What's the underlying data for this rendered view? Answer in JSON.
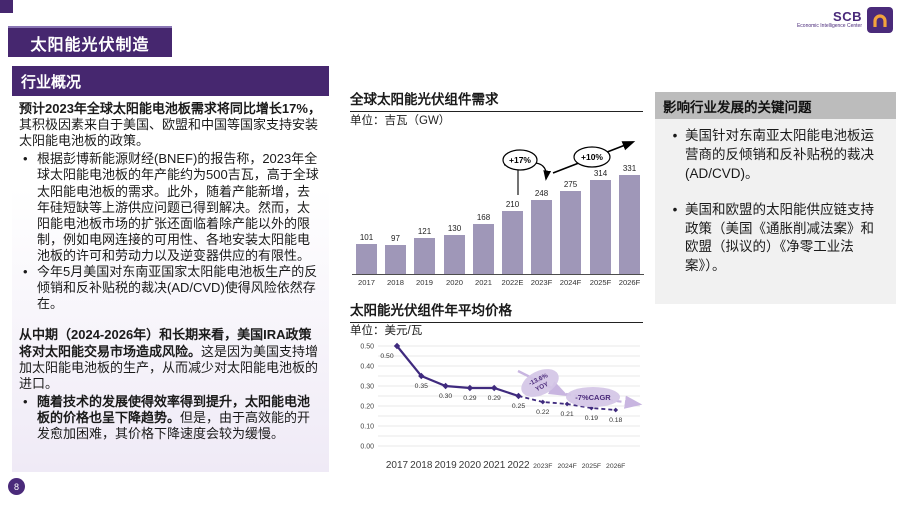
{
  "header": {
    "title": "太阳能光伏制造",
    "logo_brand": "SCB",
    "logo_subtitle": "Economic Intelligence Center",
    "page_number": "8"
  },
  "left_panel": {
    "title": "行业概况",
    "para1_bold": "预计2023年全球太阳能电池板需求将同比增长17%，",
    "para1_rest": "其积极因素来自于美国、欧盟和中国等国家支持安装太阳能电池板的政策。",
    "bullet_marker": "•",
    "bullet1": "根据彭博新能源财经(BNEF)的报告称，2023年全球太阳能电池板的年产能约为500吉瓦，高于全球太阳能电池板的需求。此外，随着产能新增，去年硅短缺等上游供应问题已得到解决。然而，太阳能电池板市场的扩张还面临着除产能以外的限制，例如电网连接的可用性、各地安装太阳能电池板的许可和劳动力以及逆变器供应的有限性。",
    "bullet2": "今年5月美国对东南亚国家太阳能电池板生产的反倾销和反补贴税的裁决(AD/CVD)使得风险依然存在。",
    "para2_bold": "从中期（2024-2026年）和长期来看，美国IRA政策将对太阳能交易市场造成风险。",
    "para2_rest": "这是因为美国支持增加太阳能电池板的生产，从而减少对太阳能电池板的进口。",
    "bullet3_bold": "随着技术的发展使得效率得到提升，太阳能电池板的价格也呈下降趋势。",
    "bullet3_rest": "但是，由于高效能的开发愈加困难，其价格下降速度会较为缓慢。"
  },
  "right_panel": {
    "title": "影响行业发展的关键问题",
    "bullet_marker": "•",
    "bullets": [
      "美国针对东南亚太阳能电池板运营商的反倾销和反补贴税的裁决(AD/CVD)。",
      "美国和欧盟的太阳能供应链支持政策（美国《通胀削减法案》和欧盟（拟议的）《净零工业法案》）。"
    ]
  },
  "chart_data": [
    {
      "type": "bar",
      "title": "全球太阳能光伏组件需求",
      "unit": "单位：吉瓦（GW）",
      "categories": [
        "2017",
        "2018",
        "2019",
        "2020",
        "2021",
        "2022E",
        "2023F",
        "2024F",
        "2025F",
        "2026F"
      ],
      "values": [
        101,
        97,
        121,
        130,
        168,
        210,
        248,
        275,
        314,
        331
      ],
      "growth_2023_label": "+17%",
      "growth_forecast_label": "+10%",
      "bar_color": "#9f97b8",
      "ylim": [
        0,
        350
      ],
      "grid": false,
      "legend": "none"
    },
    {
      "type": "line",
      "title": "太阳能光伏组件年平均价格",
      "unit": "单位：美元/瓦",
      "x": [
        "2017",
        "2018",
        "2019",
        "2020",
        "2021",
        "2022",
        "2023F",
        "2024F",
        "2025F",
        "2026F"
      ],
      "values": [
        0.5,
        0.35,
        0.3,
        0.29,
        0.29,
        0.25,
        0.22,
        0.21,
        0.19,
        0.18
      ],
      "solid_points": 6,
      "yoy_label": "-13.6% YOY",
      "cagr_label": "-7%CAGR",
      "line_color": "#3f2a7e",
      "annotation_fill": "#d4c5e6",
      "annotation_text_color": "#4a2a7a",
      "ylim": [
        0,
        0.5
      ],
      "yticks": [
        0.0,
        0.1,
        0.2,
        0.3,
        0.4,
        0.5
      ],
      "grid": true,
      "legend": "none"
    }
  ]
}
